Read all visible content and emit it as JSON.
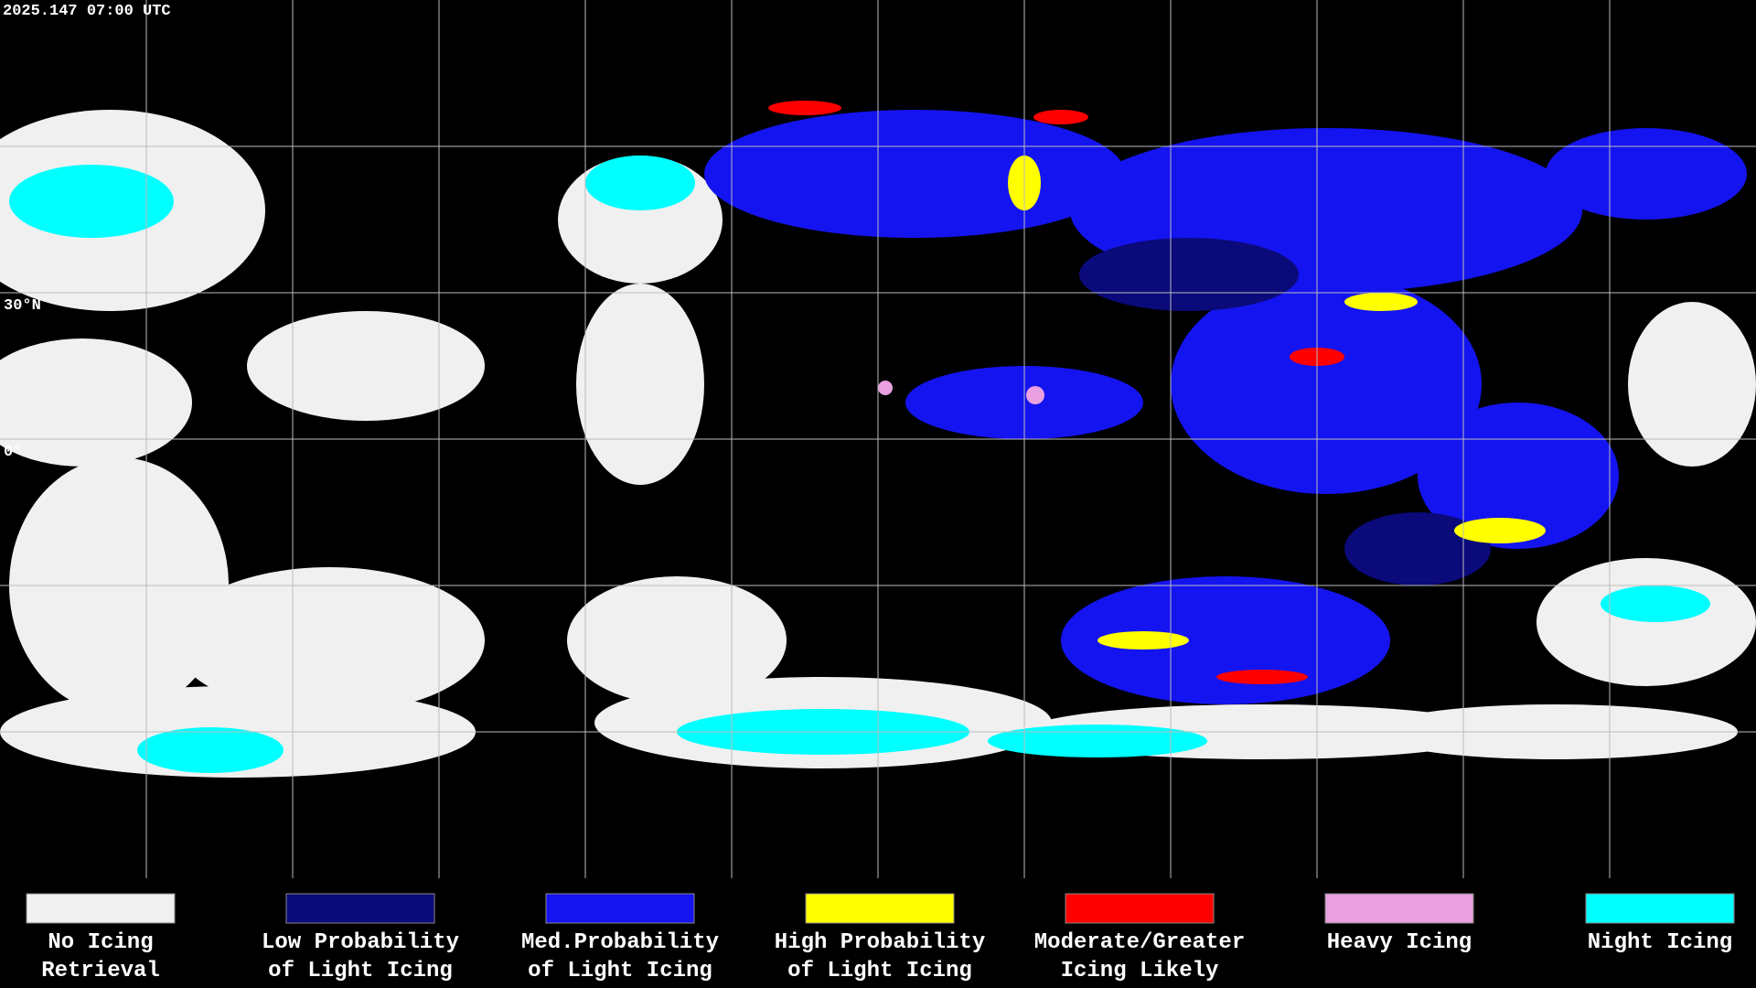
{
  "header": {
    "timestamp": "2025.147 07:00 UTC"
  },
  "map": {
    "lat_labels": [
      "30°N",
      "0°"
    ]
  },
  "legend": {
    "items": [
      {
        "label": [
          "No Icing",
          "Retrieval"
        ],
        "color": "#f0f0f0"
      },
      {
        "label": [
          "Low Probability",
          "of Light Icing"
        ],
        "color": "#0a0a7a"
      },
      {
        "label": [
          "Med.Probability",
          "of Light Icing"
        ],
        "color": "#1414f0"
      },
      {
        "label": [
          "High Probability",
          "of Light Icing"
        ],
        "color": "#ffff00"
      },
      {
        "label": [
          "Moderate/Greater",
          "Icing Likely"
        ],
        "color": "#ff0000"
      },
      {
        "label": [
          "Heavy Icing",
          ""
        ],
        "color": "#e8a0e0"
      },
      {
        "label": [
          "Night Icing",
          ""
        ],
        "color": "#00ffff"
      }
    ]
  }
}
